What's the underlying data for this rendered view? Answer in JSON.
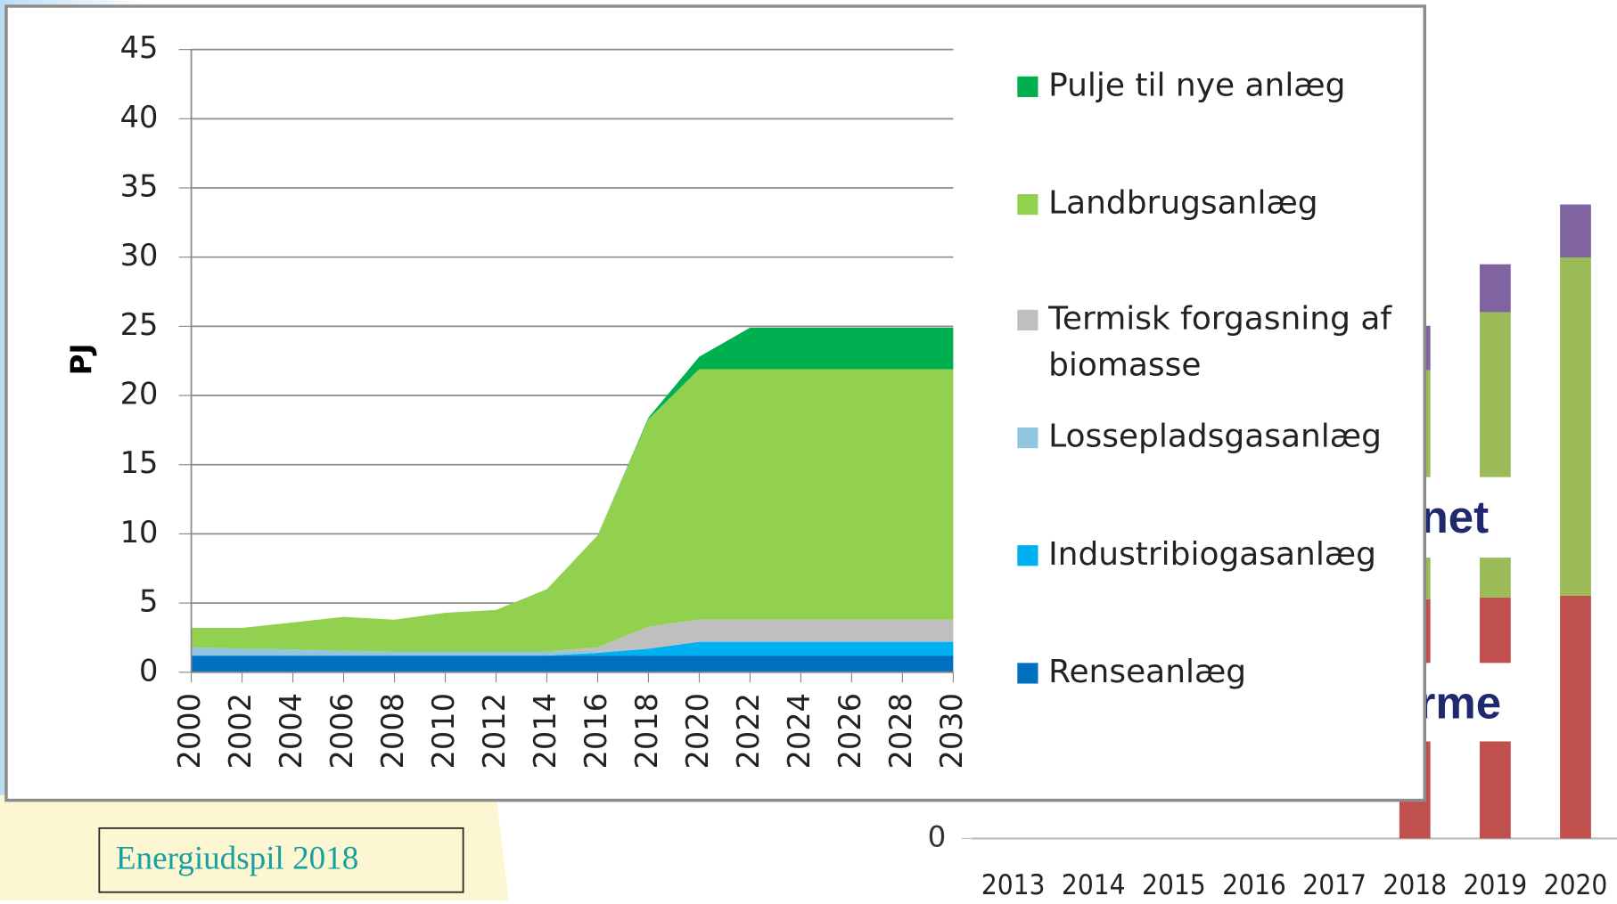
{
  "chart_data": [
    {
      "type": "area",
      "stacked": true,
      "y_label": "PJ",
      "x": [
        2000,
        2002,
        2004,
        2006,
        2008,
        2010,
        2012,
        2014,
        2016,
        2018,
        2020,
        2022,
        2024,
        2026,
        2028,
        2030
      ],
      "xlim": [
        2000,
        2030
      ],
      "xticks": [
        2000,
        2002,
        2004,
        2006,
        2008,
        2010,
        2012,
        2014,
        2016,
        2018,
        2020,
        2022,
        2024,
        2026,
        2028,
        2030
      ],
      "ylim": [
        0,
        45
      ],
      "yticks": [
        0,
        5,
        10,
        15,
        20,
        25,
        30,
        35,
        40,
        45
      ],
      "grid": true,
      "legend": "right",
      "series": [
        {
          "name": "Renseanlæg",
          "color": "#0070c0",
          "values": [
            1.2,
            1.2,
            1.2,
            1.2,
            1.2,
            1.2,
            1.2,
            1.2,
            1.2,
            1.2,
            1.2,
            1.2,
            1.2,
            1.2,
            1.2,
            1.2
          ]
        },
        {
          "name": "Industribiogasanlæg",
          "color": "#00b0f0",
          "values": [
            0,
            0,
            0,
            0,
            0,
            0,
            0,
            0,
            0.2,
            0.5,
            1.0,
            1.0,
            1.0,
            1.0,
            1.0,
            1.0
          ]
        },
        {
          "name": "Lossepladsgasanlæg",
          "color": "#92c5de",
          "values": [
            0.6,
            0.5,
            0.45,
            0.35,
            0.3,
            0.3,
            0.3,
            0.3,
            0.1,
            0,
            0,
            0,
            0,
            0,
            0,
            0
          ]
        },
        {
          "name": "Termisk forgasning af biomasse",
          "color": "#bfbfbf",
          "values": [
            0,
            0,
            0,
            0,
            0,
            0,
            0,
            0,
            0.3,
            1.6,
            1.6,
            1.6,
            1.6,
            1.6,
            1.6,
            1.6
          ]
        },
        {
          "name": "Landbrugsanlæg",
          "color": "#92d050",
          "values": [
            1.4,
            1.5,
            1.95,
            2.45,
            2.3,
            2.8,
            3.0,
            4.5,
            8.1,
            15.0,
            18.1,
            18.1,
            18.1,
            18.1,
            18.1,
            18.1
          ]
        },
        {
          "name": "Pulje til nye anlæg",
          "color": "#00b050",
          "values": [
            0,
            0,
            0,
            0,
            0,
            0,
            0,
            0,
            0,
            0.1,
            0.9,
            3.0,
            3.0,
            3.0,
            3.0,
            3.0
          ]
        }
      ]
    },
    {
      "type": "bar",
      "stacked": true,
      "categories": [
        "2013",
        "2014",
        "2015",
        "2016",
        "2017",
        "2018",
        "2019",
        "2020"
      ],
      "ylim": [
        0,
        40
      ],
      "yticks": [
        0
      ],
      "series": [
        {
          "color": "#c0504d",
          "values": [
            null,
            null,
            null,
            null,
            null,
            14.0,
            14.1,
            14.2
          ]
        },
        {
          "color": "#9bbb59",
          "values": [
            null,
            null,
            null,
            null,
            null,
            13.4,
            16.7,
            19.8
          ]
        },
        {
          "color": "#8064a2",
          "values": [
            null,
            null,
            null,
            null,
            null,
            2.6,
            2.8,
            3.1
          ]
        }
      ],
      "annotations": [
        "net",
        "rme"
      ]
    },
    {
      "caption": "Energiudspil 2018"
    }
  ]
}
